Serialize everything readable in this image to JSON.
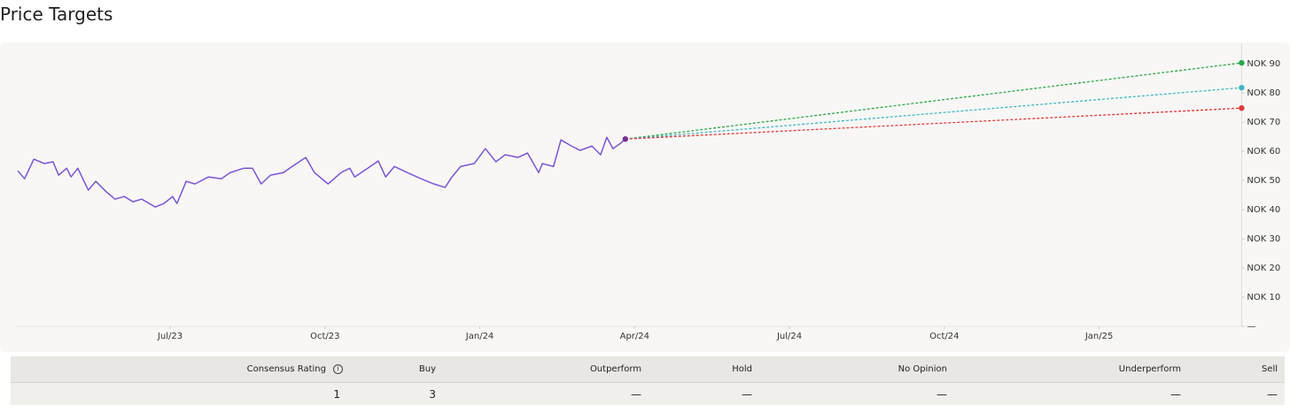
{
  "header": {
    "title": "Price Targets"
  },
  "chart_data": {
    "type": "line",
    "xlim": [
      2023.25,
      2025.23
    ],
    "ylim": [
      0,
      97
    ],
    "xticks": [
      {
        "value": 2023.5,
        "label": "Jul/23"
      },
      {
        "value": 2023.75,
        "label": "Oct/23"
      },
      {
        "value": 2024.0,
        "label": "Jan/24"
      },
      {
        "value": 2024.25,
        "label": "Apr/24"
      },
      {
        "value": 2024.5,
        "label": "Jul/24"
      },
      {
        "value": 2024.75,
        "label": "Oct/24"
      },
      {
        "value": 2025.0,
        "label": "Jan/25"
      }
    ],
    "yticks": [
      {
        "value": 0,
        "label": "—"
      },
      {
        "value": 10,
        "label": "NOK 10"
      },
      {
        "value": 20,
        "label": "NOK 20"
      },
      {
        "value": 30,
        "label": "NOK 30"
      },
      {
        "value": 40,
        "label": "NOK 40"
      },
      {
        "value": 50,
        "label": "NOK 50"
      },
      {
        "value": 60,
        "label": "NOK 60"
      },
      {
        "value": 70,
        "label": "NOK 70"
      },
      {
        "value": 80,
        "label": "NOK 80"
      },
      {
        "value": 90,
        "label": "NOK 90"
      }
    ],
    "series": [
      {
        "color": "#7b55d6",
        "end_color": "#7a2f8f",
        "x": [
          2023.254,
          2023.265,
          2023.28,
          2023.297,
          2023.311,
          2023.32,
          2023.333,
          2023.34,
          2023.351,
          2023.361,
          2023.368,
          2023.38,
          2023.397,
          2023.411,
          2023.426,
          2023.44,
          2023.454,
          2023.476,
          2023.49,
          2023.504,
          2023.511,
          2023.526,
          2023.54,
          2023.562,
          2023.583,
          2023.597,
          2023.619,
          2023.633,
          2023.647,
          2023.662,
          2023.683,
          2023.697,
          2023.719,
          2023.733,
          2023.755,
          2023.776,
          2023.79,
          2023.798,
          2023.819,
          2023.836,
          2023.848,
          2023.862,
          2023.883,
          2023.905,
          2023.926,
          2023.944,
          2023.955,
          2023.969,
          2023.991,
          2024.009,
          2024.026,
          2024.041,
          2024.062,
          2024.077,
          2024.095,
          2024.101,
          2024.119,
          2024.131,
          2024.148,
          2024.162,
          2024.181,
          2024.195,
          2024.205,
          2024.215,
          2024.227,
          2024.235
        ],
        "values": [
          53.3,
          50.6,
          57.3,
          55.8,
          56.4,
          51.8,
          54.2,
          51.2,
          54.2,
          49.7,
          46.7,
          49.7,
          46.1,
          43.6,
          44.5,
          42.7,
          43.6,
          40.9,
          42.1,
          44.5,
          42.1,
          49.7,
          48.8,
          51.2,
          50.6,
          52.7,
          54.2,
          54.2,
          48.8,
          51.8,
          52.7,
          54.8,
          57.9,
          52.7,
          48.8,
          52.7,
          54.2,
          51.2,
          54.2,
          56.7,
          51.2,
          54.8,
          52.7,
          50.6,
          48.8,
          47.6,
          51.2,
          54.8,
          55.8,
          60.9,
          56.4,
          58.8,
          57.9,
          59.4,
          52.7,
          55.8,
          54.8,
          63.9,
          61.8,
          60.3,
          61.8,
          58.8,
          64.8,
          60.9,
          62.7,
          64.2
        ]
      },
      {
        "color": "#2aa84a",
        "dashed": true,
        "x": [
          2025.23
        ],
        "values": [
          90.3
        ]
      },
      {
        "color": "#3fb6c6",
        "dashed": true,
        "x": [
          2025.23
        ],
        "values": [
          81.8
        ]
      },
      {
        "color": "#e0383a",
        "dashed": true,
        "x": [
          2025.23
        ],
        "values": [
          74.8
        ]
      }
    ]
  },
  "table": {
    "columns": [
      "Consensus Rating",
      "Buy",
      "Outperform",
      "Hold",
      "No Opinion",
      "Underperform",
      "Sell"
    ],
    "rows": [
      [
        1,
        3,
        "—",
        "—",
        "—",
        "—",
        "—"
      ]
    ]
  }
}
